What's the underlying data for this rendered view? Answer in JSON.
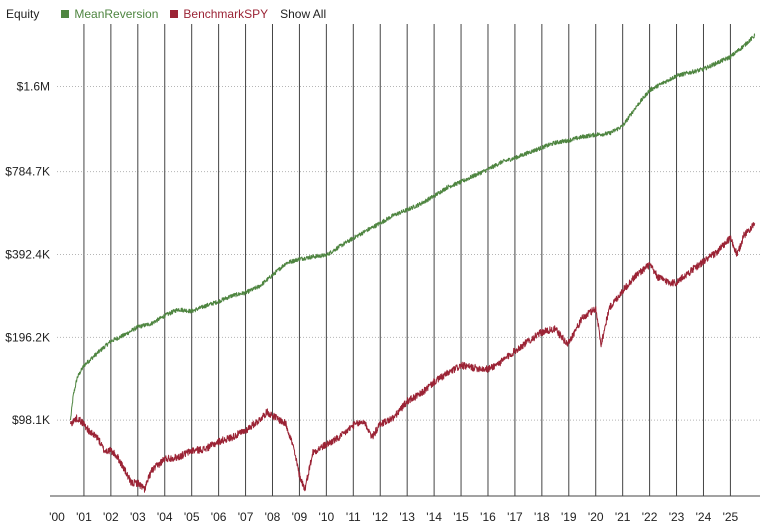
{
  "legend": {
    "title": "Equity",
    "show_all_label": "Show All"
  },
  "chart_data": {
    "type": "line",
    "title": "Equity",
    "xlabel": "",
    "ylabel": "",
    "y_scale": "log",
    "ylim": [
      52000,
      2700000
    ],
    "xlim": [
      2000.0,
      2025.95
    ],
    "grid": "vertical lines at each year; dotted horizontal lines at y ticks",
    "legend_placement": "top-left",
    "y_ticks": [
      {
        "value": 98100,
        "label": "$98.1K"
      },
      {
        "value": 196200,
        "label": "$196.2K"
      },
      {
        "value": 392400,
        "label": "$392.4K"
      },
      {
        "value": 784700,
        "label": "$784.7K"
      },
      {
        "value": 1600000,
        "label": "$1.6M"
      }
    ],
    "x_ticks": [
      {
        "value": 2000,
        "label": "'00"
      },
      {
        "value": 2001,
        "label": "'01"
      },
      {
        "value": 2002,
        "label": "'02"
      },
      {
        "value": 2003,
        "label": "'03"
      },
      {
        "value": 2004,
        "label": "'04"
      },
      {
        "value": 2005,
        "label": "'05"
      },
      {
        "value": 2006,
        "label": "'06"
      },
      {
        "value": 2007,
        "label": "'07"
      },
      {
        "value": 2008,
        "label": "'08"
      },
      {
        "value": 2009,
        "label": "'09"
      },
      {
        "value": 2010,
        "label": "'10"
      },
      {
        "value": 2011,
        "label": "'11"
      },
      {
        "value": 2012,
        "label": "'12"
      },
      {
        "value": 2013,
        "label": "'13"
      },
      {
        "value": 2014,
        "label": "'14"
      },
      {
        "value": 2015,
        "label": "'15"
      },
      {
        "value": 2016,
        "label": "'16"
      },
      {
        "value": 2017,
        "label": "'17"
      },
      {
        "value": 2018,
        "label": "'18"
      },
      {
        "value": 2019,
        "label": "'19"
      },
      {
        "value": 2020,
        "label": "'20"
      },
      {
        "value": 2021,
        "label": "'21"
      },
      {
        "value": 2022,
        "label": "'22"
      },
      {
        "value": 2023,
        "label": "'23"
      },
      {
        "value": 2024,
        "label": "'24"
      },
      {
        "value": 2025,
        "label": "'25"
      }
    ],
    "series": [
      {
        "name": "MeanReversion",
        "color": "#4e8540",
        "x": [
          2000.5,
          2000.6,
          2000.75,
          2001.0,
          2001.5,
          2002.0,
          2002.5,
          2003.0,
          2003.5,
          2004.0,
          2004.5,
          2005.0,
          2005.5,
          2006.0,
          2006.5,
          2007.0,
          2007.5,
          2008.0,
          2008.5,
          2009.0,
          2009.5,
          2010.0,
          2010.5,
          2011.0,
          2011.5,
          2012.0,
          2012.5,
          2013.0,
          2013.5,
          2014.0,
          2014.5,
          2015.0,
          2015.5,
          2016.0,
          2016.5,
          2017.0,
          2017.5,
          2018.0,
          2018.5,
          2019.0,
          2019.5,
          2020.0,
          2020.5,
          2021.0,
          2021.5,
          2022.0,
          2022.5,
          2023.0,
          2023.5,
          2024.0,
          2024.5,
          2025.0,
          2025.5,
          2025.9
        ],
        "values": [
          98100,
          120000,
          140000,
          155000,
          172000,
          190000,
          200000,
          214000,
          220000,
          235000,
          248000,
          244000,
          255000,
          265000,
          278000,
          285000,
          300000,
          330000,
          365000,
          378000,
          385000,
          390000,
          420000,
          450000,
          480000,
          510000,
          545000,
          570000,
          600000,
          640000,
          690000,
          720000,
          760000,
          800000,
          850000,
          880000,
          920000,
          960000,
          1000000,
          1020000,
          1050000,
          1070000,
          1080000,
          1150000,
          1350000,
          1550000,
          1650000,
          1750000,
          1800000,
          1850000,
          1950000,
          2050000,
          2250000,
          2450000
        ]
      },
      {
        "name": "BenchmarkSPY",
        "color": "#9b2335",
        "x": [
          2000.5,
          2000.75,
          2001.0,
          2001.25,
          2001.5,
          2001.75,
          2002.0,
          2002.25,
          2002.5,
          2002.75,
          2003.0,
          2003.25,
          2003.5,
          2004.0,
          2004.5,
          2005.0,
          2005.5,
          2006.0,
          2006.5,
          2007.0,
          2007.5,
          2007.8,
          2008.0,
          2008.5,
          2008.75,
          2009.0,
          2009.2,
          2009.5,
          2010.0,
          2010.5,
          2011.0,
          2011.4,
          2011.7,
          2012.0,
          2012.5,
          2013.0,
          2013.5,
          2014.0,
          2014.5,
          2015.0,
          2015.5,
          2016.0,
          2016.5,
          2017.0,
          2017.5,
          2018.0,
          2018.5,
          2018.95,
          2019.5,
          2020.0,
          2020.2,
          2020.5,
          2021.0,
          2021.5,
          2022.0,
          2022.3,
          2022.75,
          2023.0,
          2023.5,
          2024.0,
          2024.5,
          2025.0,
          2025.25,
          2025.5,
          2025.9
        ],
        "values": [
          95000,
          100000,
          95000,
          88000,
          85000,
          76000,
          76000,
          72000,
          65000,
          58000,
          58000,
          55000,
          64000,
          71000,
          72000,
          76000,
          77000,
          82000,
          85000,
          90000,
          98000,
          105000,
          102000,
          95000,
          80000,
          62000,
          55000,
          75000,
          80000,
          85000,
          94000,
          97000,
          85000,
          95000,
          100000,
          115000,
          122000,
          135000,
          145000,
          155000,
          152000,
          150000,
          160000,
          175000,
          190000,
          205000,
          210000,
          185000,
          230000,
          250000,
          185000,
          250000,
          290000,
          330000,
          360000,
          325000,
          310000,
          310000,
          340000,
          370000,
          400000,
          450000,
          390000,
          460000,
          510000
        ]
      }
    ]
  }
}
